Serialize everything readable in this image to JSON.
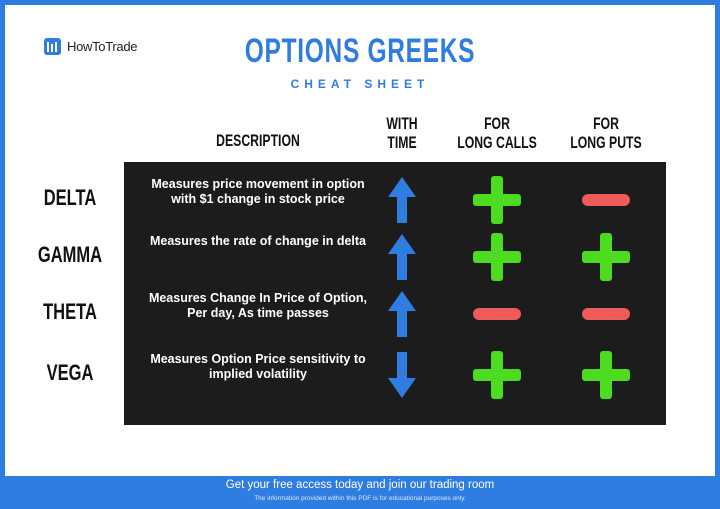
{
  "brand": {
    "name": "HowToTrade"
  },
  "title": "OPTIONS GREEKS",
  "subtitle": "CHEAT SHEET",
  "columns": {
    "description": "DESCRIPTION",
    "time": [
      "WITH",
      "TIME"
    ],
    "calls": [
      "FOR",
      "LONG CALLS"
    ],
    "puts": [
      "FOR",
      "LONG PUTS"
    ]
  },
  "rows": [
    {
      "name": "DELTA",
      "description": "Measures price movement in option with $1 change in stock price",
      "time": "up-arrow-icon",
      "calls": "plus",
      "puts": "minus"
    },
    {
      "name": "GAMMA",
      "description": "Measures the rate of change in delta",
      "time": "up-arrow-icon",
      "calls": "plus",
      "puts": "plus"
    },
    {
      "name": "THETA",
      "description": "Measures Change In Price of Option, Per day, As time passes",
      "time": "up-arrow-icon",
      "calls": "minus",
      "puts": "minus"
    },
    {
      "name": "VEGA",
      "description": "Measures Option Price sensitivity to implied volatility",
      "time": "down-arrow-icon",
      "calls": "plus",
      "puts": "plus"
    }
  ],
  "footer": {
    "cta": "Get your free access today and join our trading room",
    "disclaimer": "The information provided within this PDF is for educational purposes only."
  },
  "colors": {
    "brand": "#2f7de1",
    "plus": "#4ddb1f",
    "minus": "#f05a5a",
    "board": "#1c1c1c"
  }
}
